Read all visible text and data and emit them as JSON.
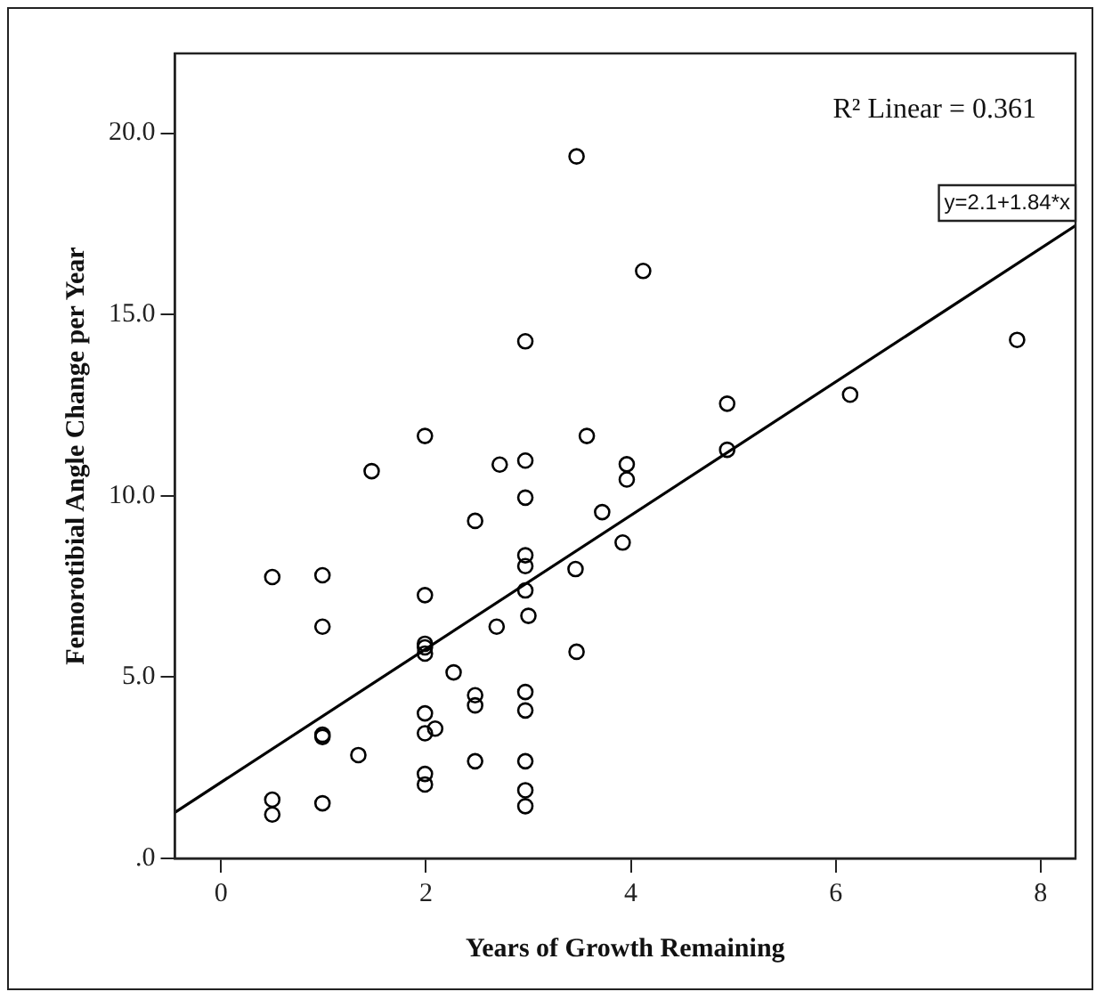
{
  "chart_data": {
    "type": "scatter",
    "xlabel": "Years of Growth Remaining",
    "ylabel": "Femorotibial Angle Change per Year",
    "xlim": [
      -0.45,
      8.34
    ],
    "ylim": [
      0,
      22.2
    ],
    "xticks": [
      0,
      2,
      4,
      6,
      8
    ],
    "yticks": [
      {
        "value": 0,
        "label": ".0"
      },
      {
        "value": 5,
        "label": "5.0"
      },
      {
        "value": 10,
        "label": "10.0"
      },
      {
        "value": 15,
        "label": "15.0"
      },
      {
        "value": 20,
        "label": "20.0"
      }
    ],
    "grid": false,
    "legend": false,
    "marker": "circle",
    "annotations": [
      "R² Linear = 0.361",
      "y=2.1+1.84*x"
    ],
    "series": [
      {
        "type": "scatter",
        "color": "#000000",
        "x": [
          3.47,
          4.12,
          2.97,
          7.77,
          4.94,
          6.14,
          1.99,
          3.57,
          1.47,
          2.72,
          2.97,
          3.96,
          3.96,
          4.94,
          2.97,
          2.48,
          3.72,
          3.92,
          2.97,
          2.97,
          3.46,
          0.5,
          0.99,
          1.99,
          2.97,
          3.0,
          0.99,
          2.69,
          1.99,
          1.99,
          1.99,
          3.47,
          2.27,
          2.48,
          2.48,
          2.97,
          2.97,
          1.99,
          1.99,
          2.09,
          0.99,
          0.99,
          1.34,
          2.48,
          2.97,
          1.99,
          1.99,
          2.97,
          2.97,
          0.5,
          0.5,
          0.99
        ],
        "values": [
          19.36,
          16.2,
          14.26,
          14.3,
          12.54,
          12.79,
          11.65,
          11.65,
          10.68,
          10.86,
          10.97,
          10.87,
          10.45,
          11.27,
          9.95,
          9.31,
          9.55,
          8.71,
          8.36,
          8.06,
          7.98,
          7.76,
          7.81,
          7.26,
          7.39,
          6.69,
          6.39,
          6.39,
          5.92,
          5.82,
          5.65,
          5.7,
          5.13,
          4.5,
          4.22,
          4.59,
          4.08,
          4.0,
          3.45,
          3.58,
          3.41,
          3.35,
          2.85,
          2.68,
          2.68,
          2.33,
          2.04,
          1.88,
          1.44,
          1.62,
          1.21,
          1.52
        ]
      },
      {
        "type": "line",
        "color": "#000000",
        "marker": "none",
        "x": [
          -0.45,
          8.34
        ],
        "values": [
          1.27,
          17.45
        ]
      }
    ]
  }
}
